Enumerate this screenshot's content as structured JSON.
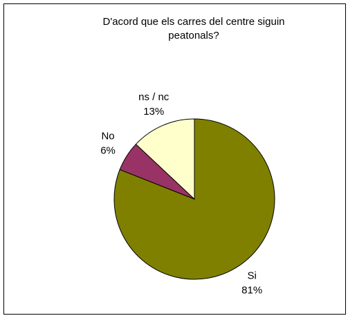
{
  "chart_data": {
    "type": "pie",
    "title": "D'acord que els carres del centre siguin peatonals?",
    "categories": [
      "Si",
      "No",
      "ns / nc"
    ],
    "values": [
      81,
      6,
      13
    ],
    "value_labels": [
      "81%",
      "6%",
      "13%"
    ],
    "colors": [
      "#808000",
      "#993366",
      "#FFFFCC"
    ]
  }
}
